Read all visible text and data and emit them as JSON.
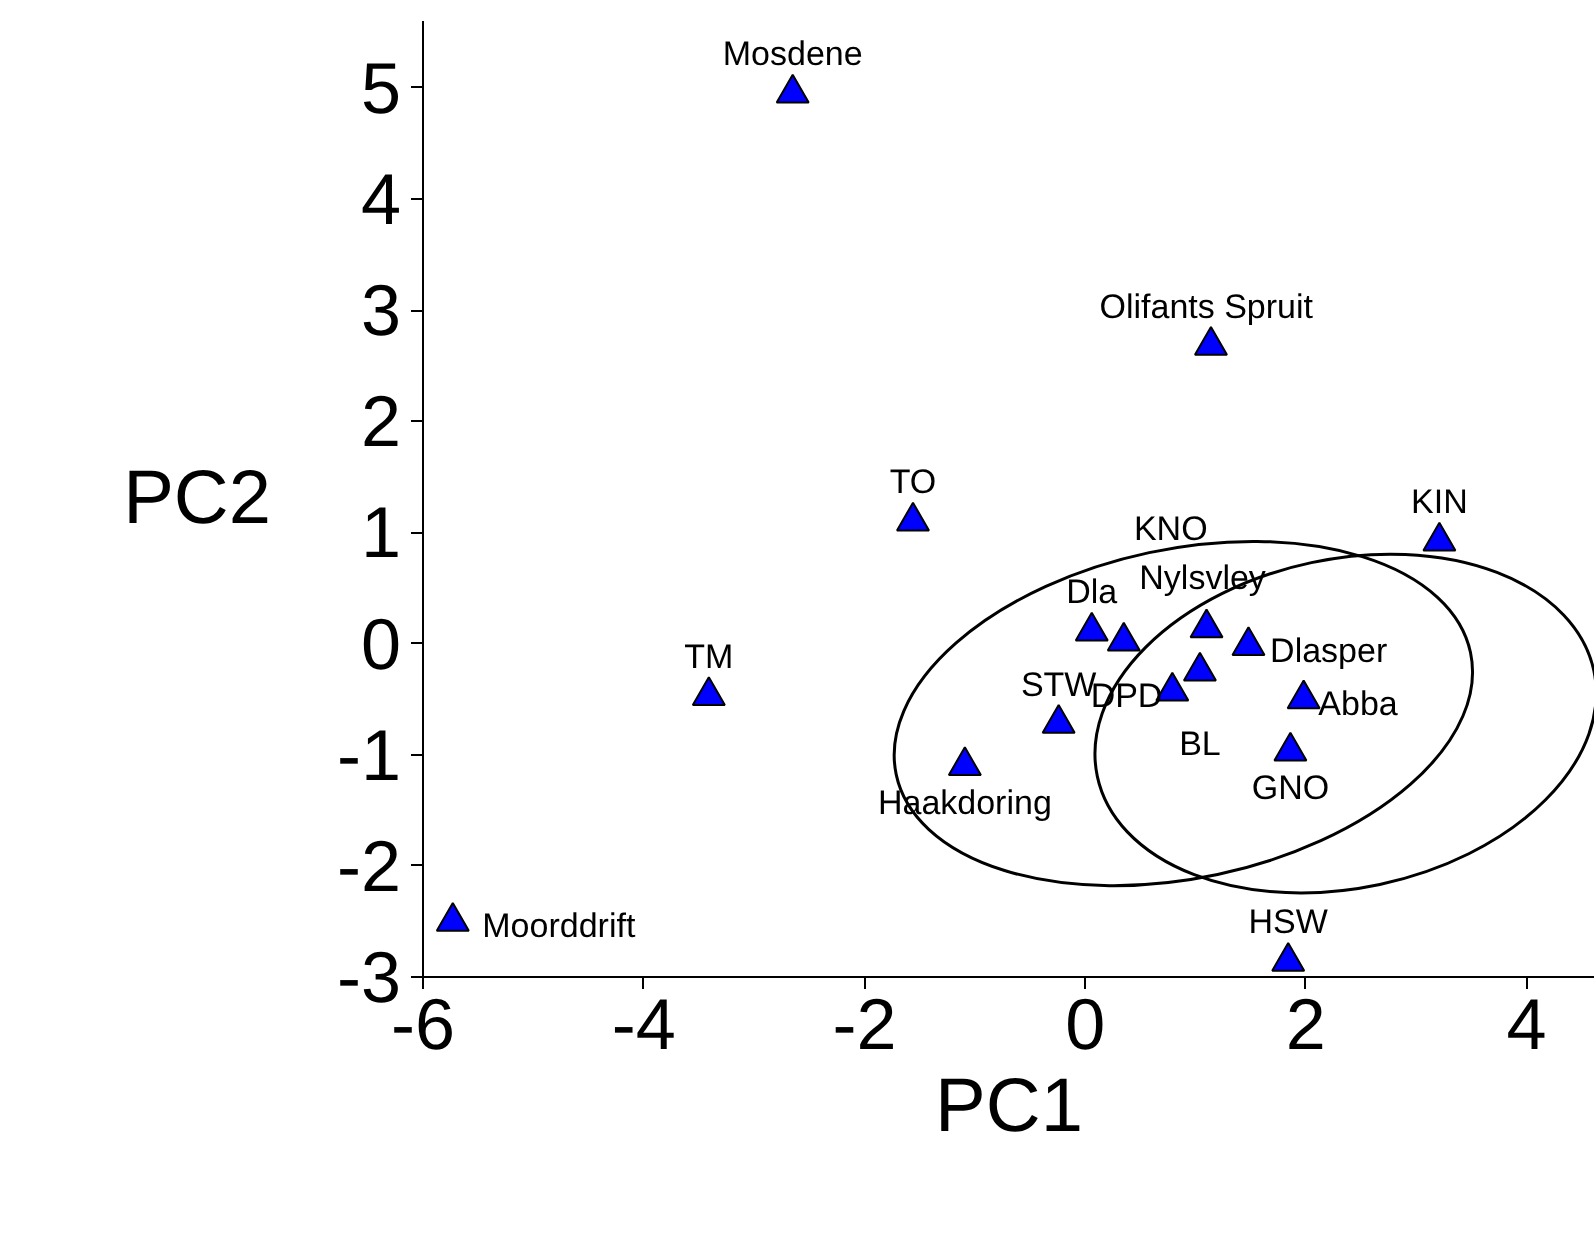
{
  "chart_data": {
    "type": "scatter",
    "xlabel": "PC1",
    "ylabel": "PC2",
    "xlim": [
      -6,
      4.62
    ],
    "ylim": [
      -3,
      5.6
    ],
    "xticks": [
      -6,
      -4,
      -2,
      0,
      2,
      4
    ],
    "yticks": [
      -3,
      -2,
      -1,
      0,
      1,
      2,
      3,
      4,
      5
    ],
    "series": [
      {
        "marker": "triangle",
        "color": "#0000ff",
        "x": [
          -2.65,
          1.14,
          -1.56,
          3.21,
          -3.41,
          -1.09,
          -0.24,
          -5.73,
          1.84,
          0.06,
          0.35,
          1.1,
          1.48,
          1.04,
          0.79,
          1.98,
          1.86
        ],
        "values": [
          4.95,
          2.68,
          1.1,
          0.92,
          -0.47,
          -1.1,
          -0.72,
          -2.5,
          -2.86,
          0.11,
          0.02,
          0.14,
          -0.02,
          -0.25,
          -0.43,
          -0.5,
          -0.97
        ]
      }
    ],
    "annotations": [
      {
        "text": "Mosdene",
        "x": -2.65,
        "y": 4.95
      },
      {
        "text": "Olifants  Spruit",
        "x": 1.14,
        "y": 2.68
      },
      {
        "text": "TO",
        "x": -1.56,
        "y": 1.1
      },
      {
        "text": "KIN",
        "x": 3.21,
        "y": 0.92
      },
      {
        "text": "TM",
        "x": -3.41,
        "y": -0.47
      },
      {
        "text": "Haakdoring",
        "x": -1.09,
        "y": -1.1
      },
      {
        "text": "STW",
        "x": -0.24,
        "y": -0.72
      },
      {
        "text": "Moorddrift",
        "x": -5.73,
        "y": -2.5
      },
      {
        "text": "HSW",
        "x": 1.84,
        "y": -2.86
      },
      {
        "text": "Dla",
        "x": 0.06,
        "y": 0.11
      },
      {
        "text": "Nylsvley",
        "x": 0.35,
        "y": 0.02
      },
      {
        "text": "KNO",
        "x": 1.1,
        "y": 0.14
      },
      {
        "text": "Dlasper",
        "x": 1.48,
        "y": -0.02
      },
      {
        "text": "BL",
        "x": 1.04,
        "y": -0.25
      },
      {
        "text": "DPD",
        "x": 0.79,
        "y": -0.43
      },
      {
        "text": "Abba",
        "x": 1.98,
        "y": -0.5
      },
      {
        "text": "GNO",
        "x": 1.86,
        "y": -0.97
      }
    ]
  }
}
